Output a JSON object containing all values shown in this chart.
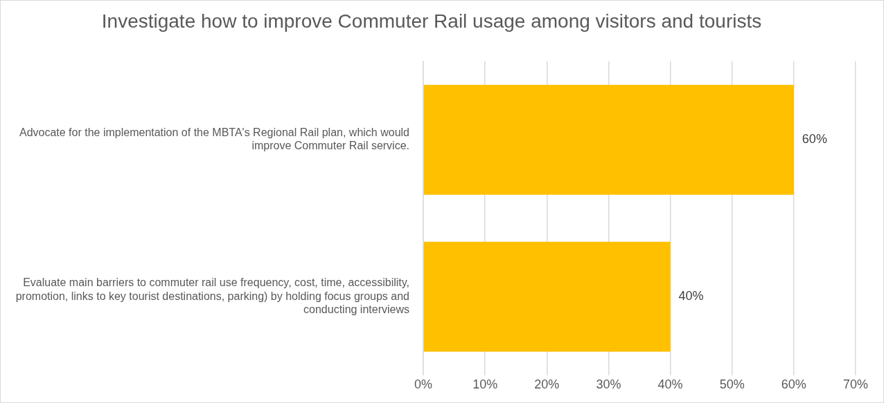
{
  "chart_data": {
    "type": "bar",
    "orientation": "horizontal",
    "title": "Investigate how to improve Commuter Rail usage among visitors and tourists",
    "categories": [
      "Advocate for the implementation of the MBTA's Regional Rail plan, which would improve Commuter Rail service.",
      "Evaluate main barriers to commuter rail use frequency, cost, time, accessibility, promotion, links to key tourist destinations, parking) by holding focus groups and conducting interviews"
    ],
    "values": [
      60,
      40
    ],
    "value_labels": [
      "60%",
      "40%"
    ],
    "color": "#ffc000",
    "xlim": [
      0,
      70
    ],
    "xticks": [
      {
        "value": 0,
        "label": "0%"
      },
      {
        "value": 10,
        "label": "10%"
      },
      {
        "value": 20,
        "label": "20%"
      },
      {
        "value": 30,
        "label": "30%"
      },
      {
        "value": 40,
        "label": "40%"
      },
      {
        "value": 50,
        "label": "50%"
      },
      {
        "value": 60,
        "label": "60%"
      },
      {
        "value": 70,
        "label": "70%"
      }
    ],
    "grid": "x",
    "legend": false
  }
}
